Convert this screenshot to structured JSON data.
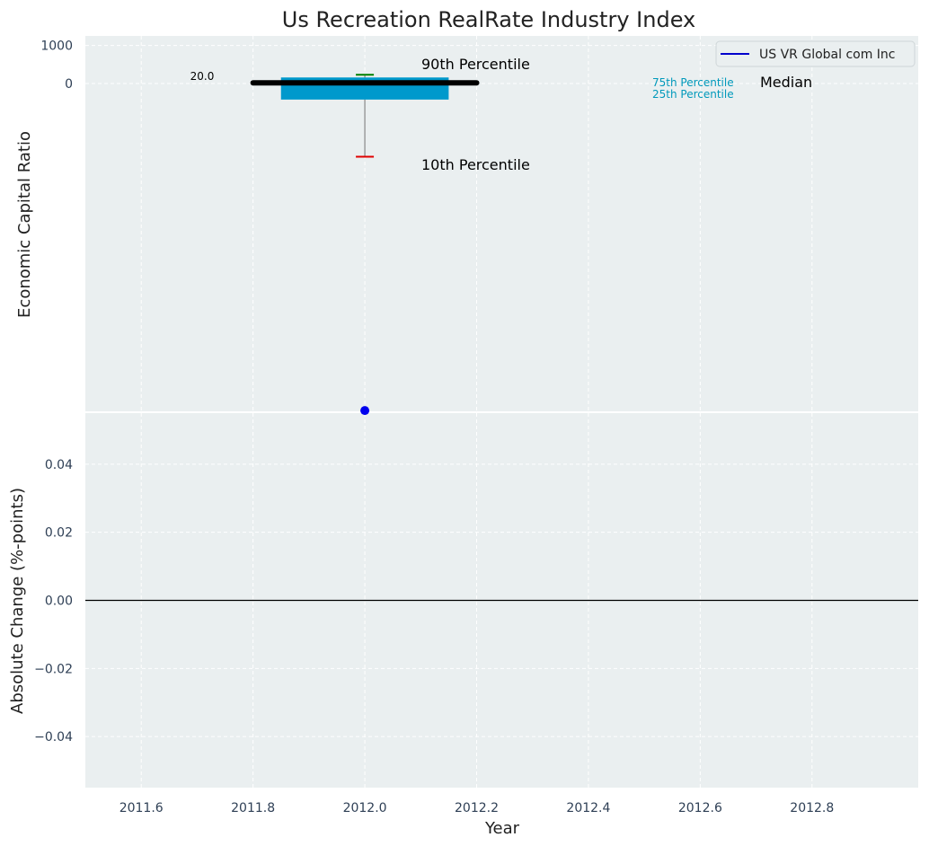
{
  "chart_data": [
    {
      "type": "box",
      "title": "Us Recreation RealRate Industry Index",
      "ylabel": "Economic Capital Ratio",
      "ylim": [
        -8600,
        1250
      ],
      "yticks": [
        0,
        1000
      ],
      "grid": true,
      "legend_position": "top-right",
      "legend": [
        {
          "label": "US VR Global com Inc",
          "color": "#0000cc"
        }
      ],
      "percentiles": {
        "year": 2012.0,
        "p90": 230,
        "p75": 160,
        "median": 20.0,
        "p25": -420,
        "p10": -1920
      },
      "median_label": "20.0",
      "series": [
        {
          "name": "US VR Global com Inc",
          "x": [
            2012.0
          ],
          "y": [
            -8580
          ]
        }
      ],
      "annotations": [
        "90th Percentile",
        "10th Percentile",
        "75th Percentile",
        "25th Percentile",
        "Median"
      ]
    },
    {
      "type": "line",
      "ylabel": "Absolute Change (%-points)",
      "xlabel": "Year",
      "xlim": [
        2011.5,
        2012.99
      ],
      "xticks": [
        2011.6,
        2011.8,
        2012.0,
        2012.2,
        2012.4,
        2012.6,
        2012.8
      ],
      "ylim": [
        -0.055,
        0.055
      ],
      "yticks": [
        -0.04,
        -0.02,
        0.0,
        0.02,
        0.04
      ],
      "baseline": 0.0,
      "grid": true
    }
  ],
  "colors": {
    "plot_background": "#eaeff0",
    "box": "#0099cc",
    "median_line": "#000000",
    "p90_cap": "#008000",
    "p10_cap": "#e00000",
    "whisker": "#888888",
    "company": "#0000ee",
    "percentile_small_text": "#0099bb"
  }
}
